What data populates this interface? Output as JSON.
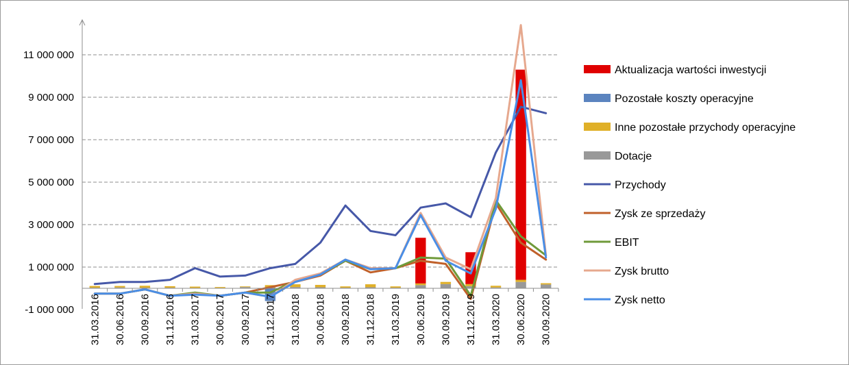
{
  "chart_data": {
    "type": "bar",
    "x": [
      "31.03.2016",
      "30.06.2016",
      "30.09.2016",
      "31.12.2016",
      "31.03.2017",
      "30.06.2017",
      "30.09.2017",
      "31.12.2017",
      "31.03.2018",
      "30.06.2018",
      "30.09.2018",
      "31.12.2018",
      "31.03.2019",
      "30.06.2019",
      "30.09.2019",
      "31.12.2019",
      "31.03.2020",
      "30.06.2020",
      "30.09.2020"
    ],
    "ylim": [
      -1000000,
      12000000
    ],
    "y_ticks": [
      -1000000,
      1000000,
      3000000,
      5000000,
      7000000,
      9000000,
      11000000
    ],
    "y_tick_labels": [
      "-1 000 000",
      "1 000 000",
      "3 000 000",
      "5 000 000",
      "7 000 000",
      "9 000 000",
      "11 000 000"
    ],
    "grid": "horizontal dashed",
    "legend_position": "right",
    "bar_series": [
      {
        "name": "Aktualizacja wartości inwestycji",
        "color": "#e00000",
        "values": [
          0,
          0,
          0,
          0,
          0,
          0,
          0,
          0,
          0,
          0,
          0,
          0,
          0,
          2150000,
          0,
          1500000,
          0,
          9900000,
          0
        ]
      },
      {
        "name": "Pozostałe koszty operacyjne",
        "color": "#5b84bf",
        "values": [
          0,
          0,
          0,
          0,
          0,
          0,
          0,
          -600000,
          0,
          0,
          0,
          0,
          0,
          0,
          0,
          0,
          0,
          0,
          0
        ]
      },
      {
        "name": "Inne pozostałe przychody operacyjne",
        "color": "#e0b028",
        "values": [
          80000,
          70000,
          90000,
          70000,
          60000,
          40000,
          30000,
          120000,
          130000,
          110000,
          60000,
          140000,
          60000,
          80000,
          100000,
          100000,
          80000,
          100000,
          60000
        ]
      },
      {
        "name": "Dotacje",
        "color": "#999999",
        "values": [
          30000,
          40000,
          30000,
          30000,
          20000,
          20000,
          60000,
          30000,
          60000,
          50000,
          30000,
          50000,
          30000,
          150000,
          200000,
          100000,
          40000,
          300000,
          180000
        ]
      }
    ],
    "line_series": [
      {
        "name": "Przychody",
        "color": "#4658a8",
        "values": [
          200000,
          300000,
          300000,
          400000,
          950000,
          550000,
          600000,
          950000,
          1150000,
          2150000,
          3900000,
          2700000,
          2500000,
          3800000,
          4000000,
          3350000,
          6400000,
          8550000,
          8250000
        ]
      },
      {
        "name": "Zysk ze sprzedaży",
        "color": "#c0602a",
        "values": [
          -250000,
          -250000,
          -50000,
          -350000,
          -250000,
          -350000,
          -200000,
          50000,
          300000,
          600000,
          1300000,
          750000,
          950000,
          1300000,
          1150000,
          -500000,
          4000000,
          2150000,
          1350000
        ]
      },
      {
        "name": "EBIT",
        "color": "#6f9a3a",
        "values": [
          -250000,
          -250000,
          -50000,
          -350000,
          -200000,
          -350000,
          -200000,
          -200000,
          350000,
          650000,
          1300000,
          900000,
          950000,
          1450000,
          1400000,
          -350000,
          4150000,
          2450000,
          1550000
        ]
      },
      {
        "name": "Zysk brutto",
        "color": "#e6a88e",
        "values": [
          -250000,
          -250000,
          -50000,
          -350000,
          -250000,
          -350000,
          -200000,
          -400000,
          400000,
          700000,
          1350000,
          950000,
          950000,
          3550000,
          1450000,
          900000,
          4250000,
          12400000,
          1550000
        ]
      },
      {
        "name": "Zysk netto",
        "color": "#4a8ee6",
        "values": [
          -250000,
          -250000,
          -50000,
          -350000,
          -300000,
          -350000,
          -200000,
          -400000,
          300000,
          650000,
          1350000,
          900000,
          950000,
          3450000,
          1300000,
          700000,
          3750000,
          9800000,
          1450000
        ]
      }
    ],
    "legend_order": [
      "Aktualizacja wartości inwestycji",
      "Pozostałe koszty operacyjne",
      "Inne pozostałe  przychody operacyjne",
      "Dotacje",
      "Przychody",
      "Zysk ze sprzedaży",
      "EBIT",
      "Zysk brutto",
      "Zysk netto"
    ]
  }
}
